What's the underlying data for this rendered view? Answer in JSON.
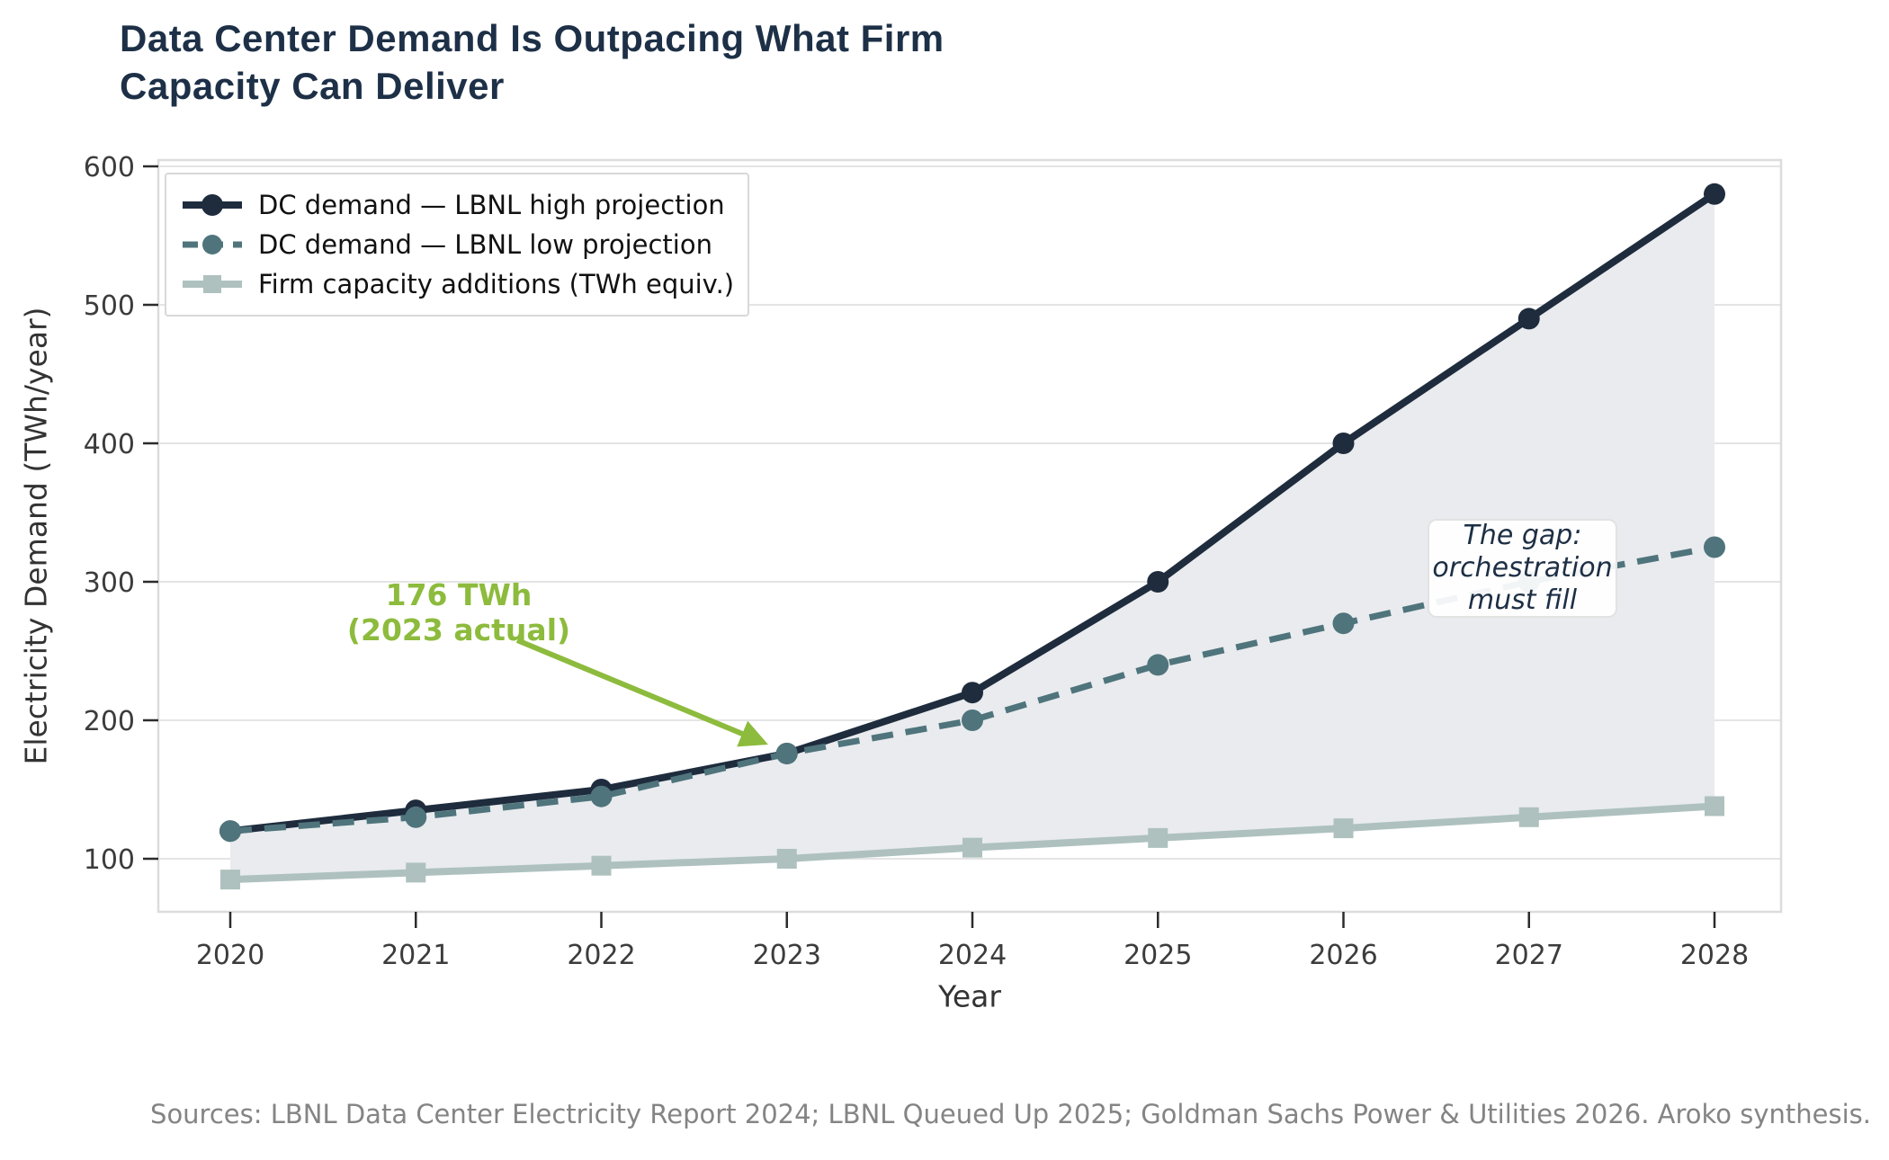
{
  "title_lines": [
    "Data Center Demand Is Outpacing What Firm",
    "Capacity Can Deliver"
  ],
  "axes": {
    "x_label": "Year",
    "y_label": "Electricity Demand (TWh/year)",
    "x_ticks": [
      2020,
      2021,
      2022,
      2023,
      2024,
      2025,
      2026,
      2027,
      2028
    ],
    "y_ticks": [
      100,
      200,
      300,
      400,
      500,
      600
    ]
  },
  "annotations": {
    "actual": {
      "lines": [
        "176 TWh",
        "(2023 actual)"
      ],
      "color": "#8dbb3d"
    },
    "gap": {
      "lines": [
        "The gap:",
        "orchestration",
        "must fill"
      ]
    }
  },
  "sources": "Sources: LBNL Data Center Electricity Report 2024; LBNL Queued Up 2025; Goldman Sachs Power & Utilities 2026. Aroko synthesis.",
  "chart_data": {
    "type": "line",
    "title": "Data Center Demand Is Outpacing What Firm Capacity Can Deliver",
    "xlabel": "Year",
    "ylabel": "Electricity Demand (TWh/year)",
    "x": [
      2020,
      2021,
      2022,
      2023,
      2024,
      2025,
      2026,
      2027,
      2028
    ],
    "series": [
      {
        "name": "DC demand — LBNL high projection",
        "values": [
          120,
          135,
          150,
          176,
          220,
          300,
          400,
          490,
          580
        ],
        "color": "#1e2c3d",
        "style": "solid",
        "marker": "circle",
        "width": 8
      },
      {
        "name": "DC demand — LBNL low projection",
        "values": [
          120,
          130,
          145,
          176,
          200,
          240,
          270,
          300,
          325
        ],
        "color": "#4f747c",
        "style": "dashed",
        "marker": "circle",
        "width": 7
      },
      {
        "name": "Firm capacity additions (TWh equiv.)",
        "values": [
          85,
          90,
          95,
          100,
          108,
          115,
          122,
          130,
          138
        ],
        "color": "#aec1bf",
        "style": "solid",
        "marker": "square",
        "width": 8
      }
    ],
    "ylim": [
      60,
      605
    ],
    "xlim": [
      2019.6,
      2028.4
    ],
    "grid": "horizontal",
    "gridline_color": "#e4e4e4",
    "spine_color": "#dcdcdc",
    "tick_color": "#2b2b2b",
    "tick_label_color": "#3c3c3c",
    "gap_fill_color": "#e9ebee",
    "gap_fill_between": [
      "DC demand — LBNL high projection",
      "Firm capacity additions (TWh equiv.)"
    ],
    "legend_position": "upper-left",
    "annotated_point": {
      "x": 2023,
      "y": 176
    }
  }
}
